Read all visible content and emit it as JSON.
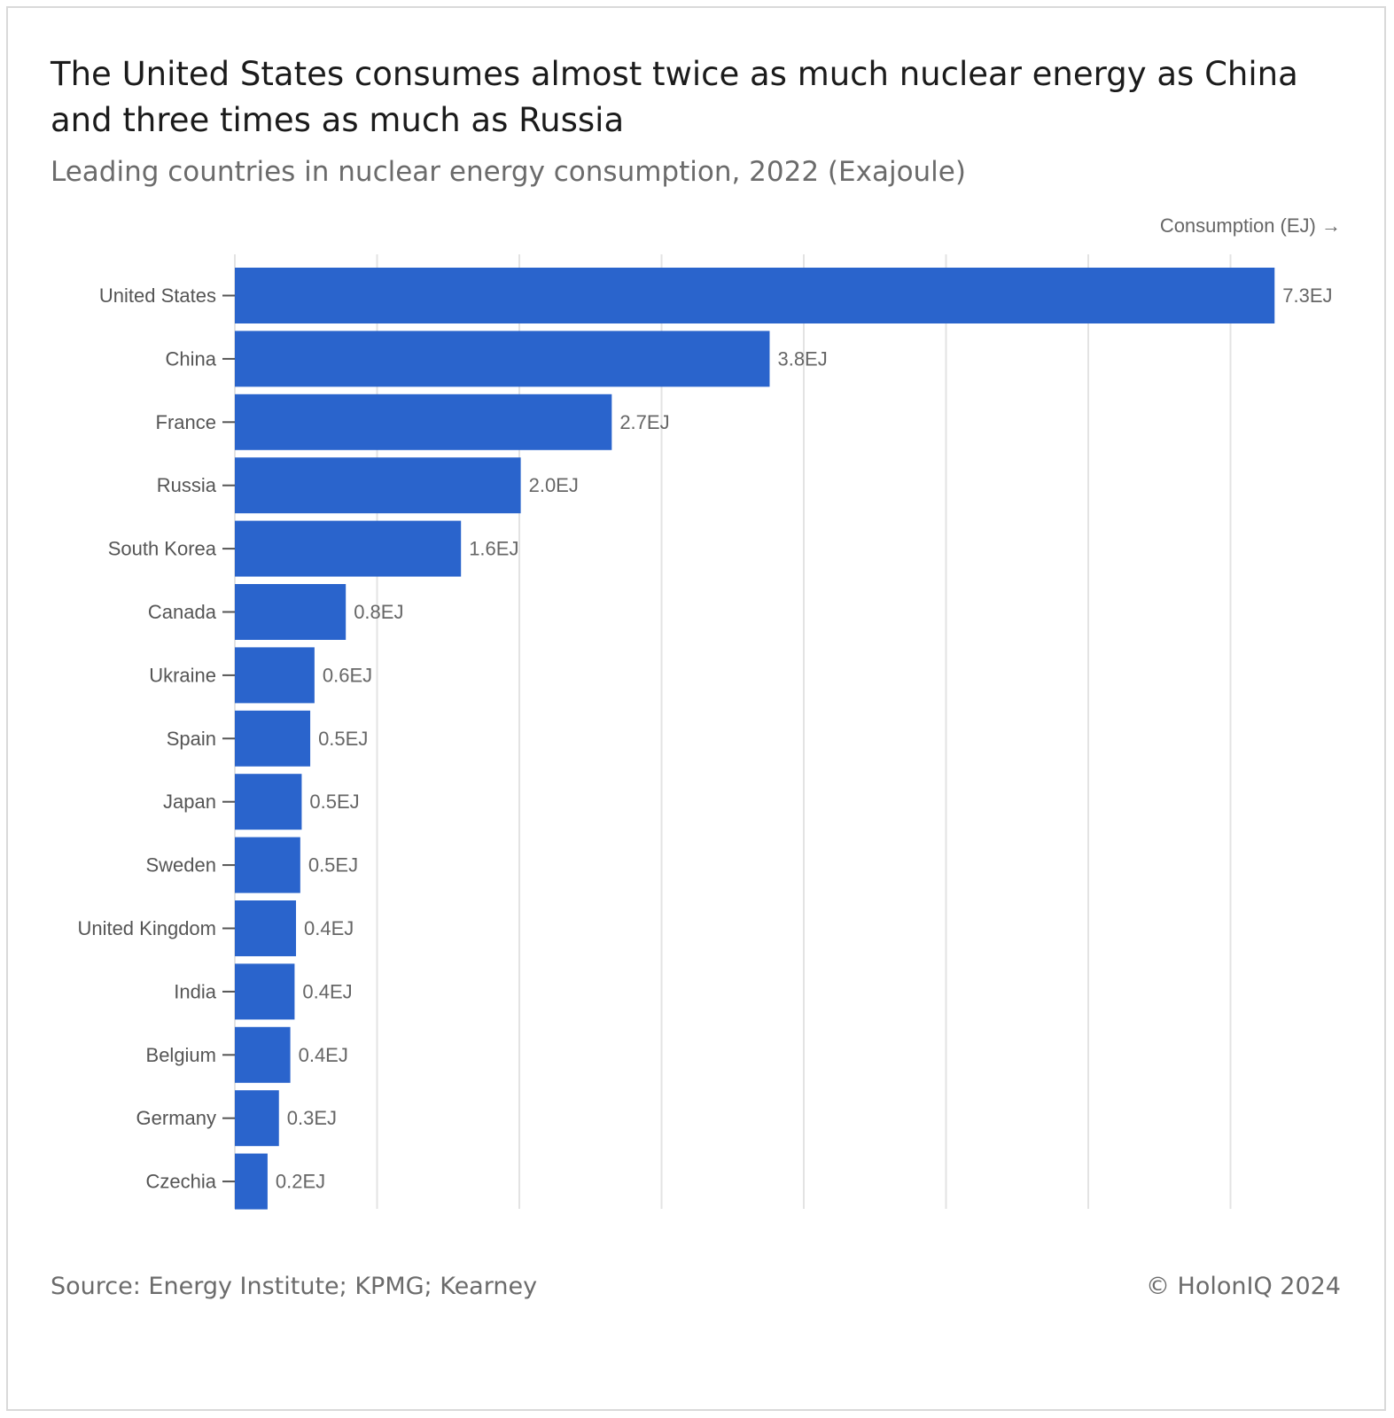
{
  "title": "The United States consumes almost twice as much nuclear energy as China and three times as much as Russia",
  "subtitle": "Leading countries in nuclear energy consumption, 2022 (Exajoule)",
  "axis_title": "Consumption (EJ) →",
  "footer": {
    "source": "Source: Energy Institute; KPMG; Kearney",
    "copyright": "© HolonIQ 2024"
  },
  "colors": {
    "bar": "#2a64cc",
    "grid": "#e3e3e3"
  },
  "chart_data": {
    "type": "bar",
    "orientation": "horizontal",
    "title": "The United States consumes almost twice as much nuclear energy as China and three times as much as Russia",
    "subtitle": "Leading countries in nuclear energy consumption, 2022 (Exajoule)",
    "xlabel": "Consumption (EJ) →",
    "ylabel": "",
    "xlim": [
      0,
      7.5
    ],
    "grid": true,
    "categories": [
      "United States",
      "China",
      "France",
      "Russia",
      "South Korea",
      "Canada",
      "Ukraine",
      "Spain",
      "Japan",
      "Sweden",
      "United Kingdom",
      "India",
      "Belgium",
      "Germany",
      "Czechia"
    ],
    "values": [
      7.31,
      3.76,
      2.65,
      2.01,
      1.59,
      0.78,
      0.56,
      0.53,
      0.47,
      0.46,
      0.43,
      0.42,
      0.39,
      0.31,
      0.23
    ],
    "data_labels": [
      "7.3EJ",
      "3.8EJ",
      "2.7EJ",
      "2.0EJ",
      "1.6EJ",
      "0.8EJ",
      "0.6EJ",
      "0.5EJ",
      "0.5EJ",
      "0.5EJ",
      "0.4EJ",
      "0.4EJ",
      "0.4EJ",
      "0.3EJ",
      "0.2EJ"
    ]
  }
}
